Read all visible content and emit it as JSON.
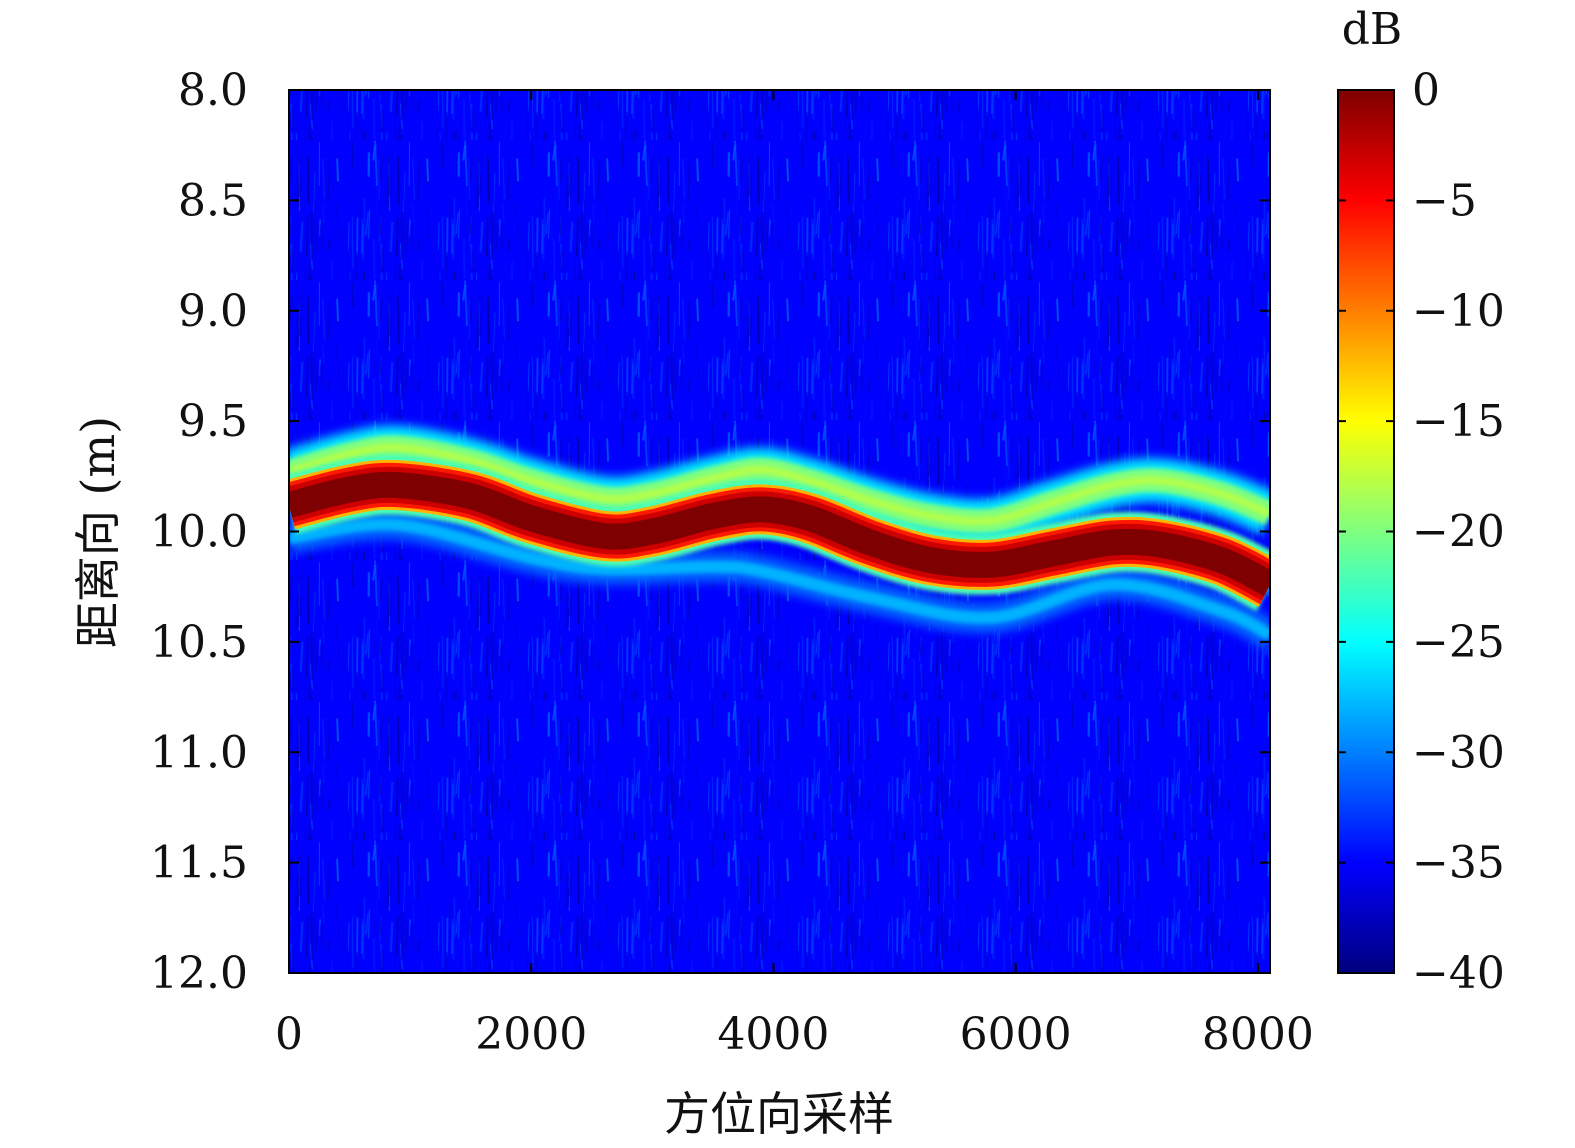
{
  "chart_data": {
    "type": "heatmap",
    "title": "",
    "xlabel": "方位向采样",
    "ylabel": "距离向 (m)",
    "xlim": [
      0,
      8100
    ],
    "ylim": [
      8.0,
      12.0
    ],
    "y_reversed": true,
    "x_ticks": [
      0,
      2000,
      4000,
      6000,
      8000
    ],
    "x_tick_labels": [
      "0",
      "2000",
      "4000",
      "6000",
      "8000"
    ],
    "y_ticks": [
      8.0,
      8.5,
      9.0,
      9.5,
      10.0,
      10.5,
      11.0,
      11.5,
      12.0
    ],
    "y_tick_labels": [
      "8.0",
      "8.5",
      "9.0",
      "9.5",
      "10.0",
      "10.5",
      "11.0",
      "11.5",
      "12.0"
    ],
    "colormap": "jet",
    "colorbar": {
      "label": "dB",
      "range": [
        -40,
        0
      ],
      "ticks": [
        0,
        -5,
        -10,
        -15,
        -20,
        -25,
        -30,
        -35,
        -40
      ],
      "tick_labels": [
        "0",
        "−5",
        "−10",
        "−15",
        "−20",
        "−25",
        "−30",
        "−35",
        "−40"
      ]
    },
    "background_level_db": -35,
    "main_trace": {
      "level_db": 0,
      "points": [
        {
          "x": 0,
          "y": 9.88
        },
        {
          "x": 500,
          "y": 9.81
        },
        {
          "x": 900,
          "y": 9.79
        },
        {
          "x": 1500,
          "y": 9.84
        },
        {
          "x": 2000,
          "y": 9.94
        },
        {
          "x": 2600,
          "y": 10.02
        },
        {
          "x": 3000,
          "y": 10.0
        },
        {
          "x": 3500,
          "y": 9.93
        },
        {
          "x": 3900,
          "y": 9.9
        },
        {
          "x": 4300,
          "y": 9.94
        },
        {
          "x": 4800,
          "y": 10.05
        },
        {
          "x": 5300,
          "y": 10.13
        },
        {
          "x": 5800,
          "y": 10.15
        },
        {
          "x": 6300,
          "y": 10.1
        },
        {
          "x": 6800,
          "y": 10.05
        },
        {
          "x": 7200,
          "y": 10.06
        },
        {
          "x": 7700,
          "y": 10.13
        },
        {
          "x": 8100,
          "y": 10.24
        }
      ]
    },
    "sidelobe_upper": {
      "level_db": -20,
      "points": [
        {
          "x": 0,
          "y": 9.73
        },
        {
          "x": 500,
          "y": 9.65
        },
        {
          "x": 900,
          "y": 9.62
        },
        {
          "x": 1500,
          "y": 9.68
        },
        {
          "x": 2000,
          "y": 9.77
        },
        {
          "x": 2600,
          "y": 9.85
        },
        {
          "x": 3000,
          "y": 9.83
        },
        {
          "x": 3500,
          "y": 9.76
        },
        {
          "x": 3900,
          "y": 9.72
        },
        {
          "x": 4300,
          "y": 9.77
        },
        {
          "x": 4800,
          "y": 9.86
        },
        {
          "x": 5300,
          "y": 9.93
        },
        {
          "x": 5800,
          "y": 9.95
        },
        {
          "x": 6300,
          "y": 9.87
        },
        {
          "x": 6800,
          "y": 9.79
        },
        {
          "x": 7200,
          "y": 9.77
        },
        {
          "x": 7700,
          "y": 9.83
        },
        {
          "x": 8100,
          "y": 9.92
        }
      ]
    },
    "sidelobe_lower": {
      "level_db": -28,
      "points": [
        {
          "x": 0,
          "y": 10.03
        },
        {
          "x": 900,
          "y": 9.97
        },
        {
          "x": 2000,
          "y": 10.12
        },
        {
          "x": 2600,
          "y": 10.17
        },
        {
          "x": 3500,
          "y": 10.16
        },
        {
          "x": 3900,
          "y": 10.18
        },
        {
          "x": 4800,
          "y": 10.3
        },
        {
          "x": 5800,
          "y": 10.39
        },
        {
          "x": 6800,
          "y": 10.24
        },
        {
          "x": 7700,
          "y": 10.36
        },
        {
          "x": 8100,
          "y": 10.47
        }
      ]
    },
    "colors": {
      "jet": [
        "#00007f",
        "#0000ff",
        "#007fff",
        "#00ffff",
        "#7fff7f",
        "#ffff00",
        "#ff7f00",
        "#ff0000",
        "#7f0000"
      ]
    }
  }
}
